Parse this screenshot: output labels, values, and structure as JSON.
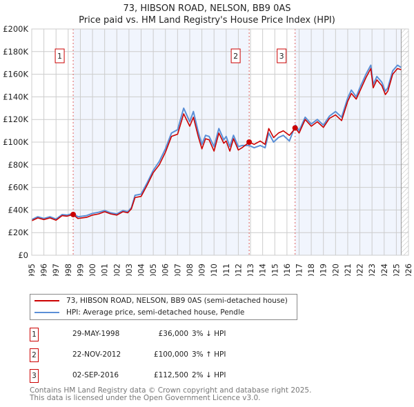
{
  "title": "73, HIBSON ROAD, NELSON, BB9 0AS",
  "subtitle": "Price paid vs. HM Land Registry's House Price Index (HPI)",
  "chart_data": {
    "type": "line",
    "xlim": [
      1995,
      2026
    ],
    "ylim": [
      0,
      200000
    ],
    "yticks": [
      0,
      20000,
      40000,
      60000,
      80000,
      100000,
      120000,
      140000,
      160000,
      180000,
      200000
    ],
    "ytick_labels": [
      "£0",
      "£20K",
      "£40K",
      "£60K",
      "£80K",
      "£100K",
      "£120K",
      "£140K",
      "£160K",
      "£180K",
      "£200K"
    ],
    "xtick_labels": [
      "1995",
      "1996",
      "1997",
      "1998",
      "1999",
      "2000",
      "2001",
      "2002",
      "2003",
      "2004",
      "2005",
      "2006",
      "2007",
      "2008",
      "2009",
      "2010",
      "2011",
      "2012",
      "2013",
      "2014",
      "2015",
      "2016",
      "2017",
      "2018",
      "2019",
      "2020",
      "2021",
      "2022",
      "2023",
      "2024",
      "2025",
      "2026"
    ],
    "grid": true,
    "legend_position": "below",
    "data_end": 2025.4,
    "series": [
      {
        "name": "73, HIBSON ROAD, NELSON, BB9 0AS (semi-detached house)",
        "color": "#cc0000",
        "x": [
          1995,
          1995.5,
          1996,
          1996.5,
          1997,
          1997.5,
          1997.9,
          1998.4,
          1998.8,
          1999.5,
          2000,
          2000.5,
          2001,
          2001.5,
          2002,
          2002.5,
          2002.9,
          2003.2,
          2003.5,
          2004,
          2004.5,
          2005,
          2005.5,
          2006,
          2006.5,
          2007,
          2007.5,
          2008,
          2008.3,
          2008.7,
          2009,
          2009.3,
          2009.6,
          2010,
          2010.4,
          2010.8,
          2011,
          2011.3,
          2011.6,
          2012,
          2012.3,
          2012.9,
          2013.3,
          2013.8,
          2014.2,
          2014.5,
          2014.9,
          2015.3,
          2015.7,
          2016.2,
          2016.7,
          2017,
          2017.5,
          2018,
          2018.5,
          2019,
          2019.5,
          2020,
          2020.5,
          2021,
          2021.3,
          2021.7,
          2022,
          2022.5,
          2022.9,
          2023.1,
          2023.4,
          2023.8,
          2024.1,
          2024.3,
          2024.7,
          2025.1,
          2025.4
        ],
        "y": [
          30500,
          33000,
          31500,
          33000,
          31000,
          35000,
          34500,
          36000,
          32500,
          33500,
          35500,
          36500,
          38500,
          36500,
          35500,
          38500,
          37500,
          41000,
          51000,
          52000,
          62000,
          73000,
          80000,
          91000,
          105000,
          107000,
          125000,
          114000,
          122000,
          105000,
          94000,
          103000,
          102000,
          92000,
          108000,
          99000,
          101000,
          92000,
          103000,
          93000,
          95000,
          100000,
          98000,
          101000,
          98000,
          112000,
          104000,
          108000,
          110000,
          106000,
          112500,
          108000,
          120000,
          114000,
          118000,
          113000,
          121000,
          124000,
          119000,
          136000,
          143000,
          138000,
          145000,
          157000,
          165000,
          148000,
          155000,
          150000,
          142000,
          145000,
          160000,
          165000,
          164000
        ]
      },
      {
        "name": "HPI: Average price, semi-detached house, Pendle",
        "color": "#5b8fd6",
        "x": [
          1995,
          1995.5,
          1996,
          1996.5,
          1997,
          1997.5,
          1997.9,
          1998.4,
          1998.8,
          1999.5,
          2000,
          2000.5,
          2001,
          2001.5,
          2002,
          2002.5,
          2002.9,
          2003.2,
          2003.5,
          2004,
          2004.5,
          2005,
          2005.5,
          2006,
          2006.5,
          2007,
          2007.5,
          2008,
          2008.3,
          2008.7,
          2009,
          2009.3,
          2009.6,
          2010,
          2010.4,
          2010.8,
          2011,
          2011.3,
          2011.6,
          2012,
          2012.3,
          2012.9,
          2013.3,
          2013.8,
          2014.2,
          2014.5,
          2014.9,
          2015.3,
          2015.7,
          2016.2,
          2016.7,
          2017,
          2017.5,
          2018,
          2018.5,
          2019,
          2019.5,
          2020,
          2020.5,
          2021,
          2021.3,
          2021.7,
          2022,
          2022.5,
          2022.9,
          2023.1,
          2023.4,
          2023.8,
          2024.1,
          2024.3,
          2024.7,
          2025.1,
          2025.4
        ],
        "y": [
          31500,
          34000,
          32500,
          34000,
          32000,
          36000,
          35500,
          37000,
          34000,
          35000,
          37000,
          38000,
          39500,
          37500,
          36500,
          39500,
          38500,
          42000,
          53000,
          54000,
          64000,
          75000,
          83000,
          94000,
          108000,
          111000,
          130000,
          118000,
          127000,
          109000,
          98000,
          106000,
          105000,
          96000,
          112000,
          102000,
          105000,
          96000,
          106000,
          96000,
          97000,
          97000,
          95000,
          97000,
          95000,
          108000,
          100000,
          104000,
          106000,
          101000,
          115000,
          110000,
          122000,
          116000,
          120000,
          115000,
          123000,
          127000,
          122000,
          139000,
          146000,
          140000,
          148000,
          160000,
          168000,
          151000,
          158000,
          153000,
          145000,
          148000,
          163000,
          168000,
          166000
        ]
      }
    ],
    "sales": [
      {
        "label": "1",
        "x": 1998.41,
        "price": 36000
      },
      {
        "label": "2",
        "x": 2012.89,
        "price": 100000
      },
      {
        "label": "3",
        "x": 2016.67,
        "price": 112500
      }
    ]
  },
  "legend": {
    "property": "73, HIBSON ROAD, NELSON, BB9 0AS (semi-detached house)",
    "hpi": "HPI: Average price, semi-detached house, Pendle"
  },
  "transactions": [
    {
      "num": "1",
      "date": "29-MAY-1998",
      "price": "£36,000",
      "hpi": "3% ↓ HPI"
    },
    {
      "num": "2",
      "date": "22-NOV-2012",
      "price": "£100,000",
      "hpi": "3% ↑ HPI"
    },
    {
      "num": "3",
      "date": "02-SEP-2016",
      "price": "£112,500",
      "hpi": "2% ↓ HPI"
    }
  ],
  "footer": {
    "line1": "Contains HM Land Registry data © Crown copyright and database right 2025.",
    "line2": "This data is licensed under the Open Government Licence v3.0."
  }
}
